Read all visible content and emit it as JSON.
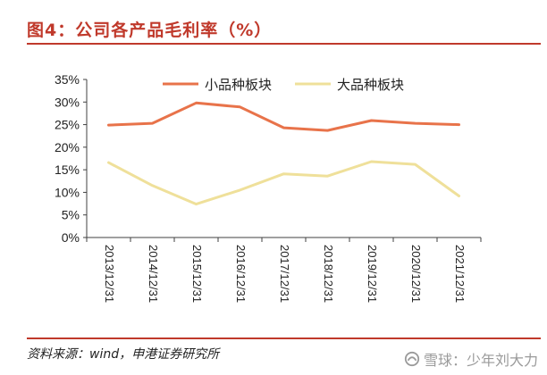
{
  "figure": {
    "title": "图4：公司各产品毛利率（%）",
    "source": "资料来源：wind，申港证券研究所",
    "watermark": "雪球：少年刘大力"
  },
  "colors": {
    "accent": "#c0392b",
    "series_small": "#e8734a",
    "series_large": "#efe09a"
  },
  "chart_data": {
    "type": "line",
    "title": "",
    "xlabel": "",
    "ylabel": "",
    "x": [
      "2013/12/31",
      "2014/12/31",
      "2015/12/31",
      "2016/12/31",
      "2017/12/31",
      "2018/12/31",
      "2019/12/31",
      "2020/12/31",
      "2021/12/31"
    ],
    "ylim": [
      0,
      35
    ],
    "yticks": [
      0,
      5,
      10,
      15,
      20,
      25,
      30,
      35
    ],
    "ytick_labels": [
      "0%",
      "5%",
      "10%",
      "15%",
      "20%",
      "25%",
      "30%",
      "35%"
    ],
    "grid": false,
    "legend_position": "top",
    "series": [
      {
        "name": "小品种板块",
        "color": "#e8734a",
        "values": [
          24.9,
          25.3,
          29.8,
          28.9,
          24.3,
          23.7,
          25.9,
          25.3,
          25.0
        ]
      },
      {
        "name": "大品种板块",
        "color": "#efe09a",
        "values": [
          16.6,
          11.5,
          7.4,
          10.5,
          14.1,
          13.6,
          16.8,
          16.2,
          9.2
        ]
      }
    ]
  }
}
